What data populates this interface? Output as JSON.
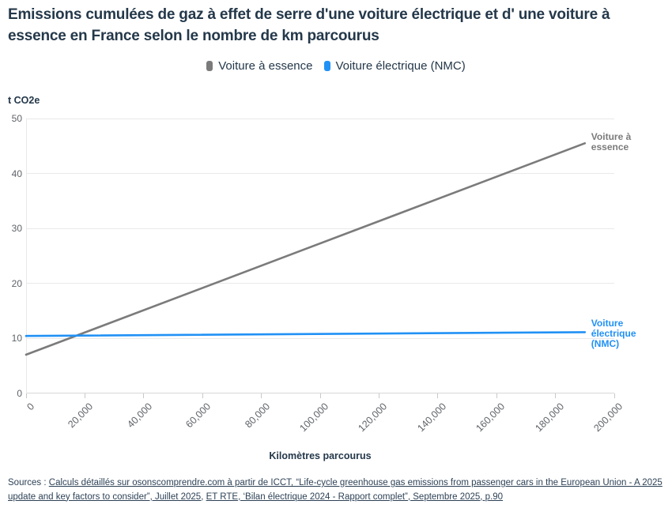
{
  "title": "Emissions cumulées de gaz à effet de serre d'une voiture électrique et d' une voiture à essence en France selon le nombre de km parcourus",
  "chart_data": {
    "type": "line",
    "title": "Emissions cumulées de gaz à effet de serre d'une voiture électrique et d' une voiture à essence en France selon le nombre de km parcourus",
    "xlabel": "Kilomètres parcourus",
    "ylabel": "t CO2e",
    "xlim": [
      0,
      200000
    ],
    "ylim": [
      0,
      50
    ],
    "grid": "horizontal",
    "legend_position": "top-center",
    "x_ticks": [
      {
        "value": 0,
        "label": "0"
      },
      {
        "value": 20000,
        "label": "20,000"
      },
      {
        "value": 40000,
        "label": "40,000"
      },
      {
        "value": 60000,
        "label": "60,000"
      },
      {
        "value": 80000,
        "label": "80,000"
      },
      {
        "value": 100000,
        "label": "100,000"
      },
      {
        "value": 120000,
        "label": "120,000"
      },
      {
        "value": 140000,
        "label": "140,000"
      },
      {
        "value": 160000,
        "label": "160,000"
      },
      {
        "value": 180000,
        "label": "180,000"
      },
      {
        "value": 200000,
        "label": "200,000"
      }
    ],
    "y_ticks": [
      {
        "value": 0,
        "label": "0"
      },
      {
        "value": 10,
        "label": "10"
      },
      {
        "value": 20,
        "label": "20"
      },
      {
        "value": 30,
        "label": "30"
      },
      {
        "value": 40,
        "label": "40"
      },
      {
        "value": 50,
        "label": "50"
      }
    ],
    "series": [
      {
        "name": "Voiture à essence",
        "color": "#7b7b7b",
        "x": [
          0,
          190000
        ],
        "values": [
          7.0,
          45.5
        ]
      },
      {
        "name": "Voiture électrique (NMC)",
        "color": "#2191f5",
        "x": [
          0,
          190000
        ],
        "values": [
          10.4,
          11.1
        ]
      }
    ]
  },
  "colors": {
    "title_text": "#24384a",
    "axis_text": "#5f6368",
    "grid": "#e9e9e9",
    "axis_line": "#d8d8d8",
    "essence": "#7b7b7b",
    "electrique": "#2191f5"
  },
  "sources": {
    "prefix": "Sources : ",
    "link1": "Calculs détaillés sur osonscomprendre.com à partir de ICCT, “Life-cycle greenhouse gas emissions from passenger cars in the European Union - A 2025 update and key factors to consider”, Juillet 2025,",
    "link2": "ET RTE, ‘Bilan électrique 2024 - Rapport complet”, Septembre 2025, p.90"
  }
}
